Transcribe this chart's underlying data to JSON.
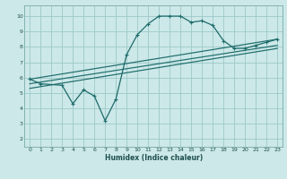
{
  "background_color": "#cce8e8",
  "grid_color": "#9dc8c8",
  "line_color": "#1e6b6b",
  "xlabel": "Humidex (Indice chaleur)",
  "xlim": [
    -0.5,
    23.5
  ],
  "ylim": [
    1.5,
    10.7
  ],
  "yticks": [
    2,
    3,
    4,
    5,
    6,
    7,
    8,
    9,
    10
  ],
  "xticks": [
    0,
    1,
    2,
    3,
    4,
    5,
    6,
    7,
    8,
    9,
    10,
    11,
    12,
    13,
    14,
    15,
    16,
    17,
    18,
    19,
    20,
    21,
    22,
    23
  ],
  "line1_x": [
    0,
    1,
    3,
    4,
    5,
    6,
    7,
    8,
    9,
    10,
    11,
    12,
    13,
    14,
    15,
    16,
    17,
    18,
    19,
    20,
    21,
    22,
    23
  ],
  "line1_y": [
    5.9,
    5.6,
    5.5,
    4.3,
    5.2,
    4.8,
    3.2,
    4.6,
    7.5,
    8.8,
    9.5,
    10.0,
    10.0,
    10.0,
    9.6,
    9.7,
    9.4,
    8.4,
    7.9,
    7.9,
    8.1,
    8.3,
    8.5
  ],
  "line2_x": [
    0,
    23
  ],
  "line2_y": [
    5.9,
    8.5
  ],
  "line3_x": [
    0,
    23
  ],
  "line3_y": [
    5.6,
    8.1
  ],
  "line4_x": [
    0,
    23
  ],
  "line4_y": [
    5.3,
    7.9
  ]
}
